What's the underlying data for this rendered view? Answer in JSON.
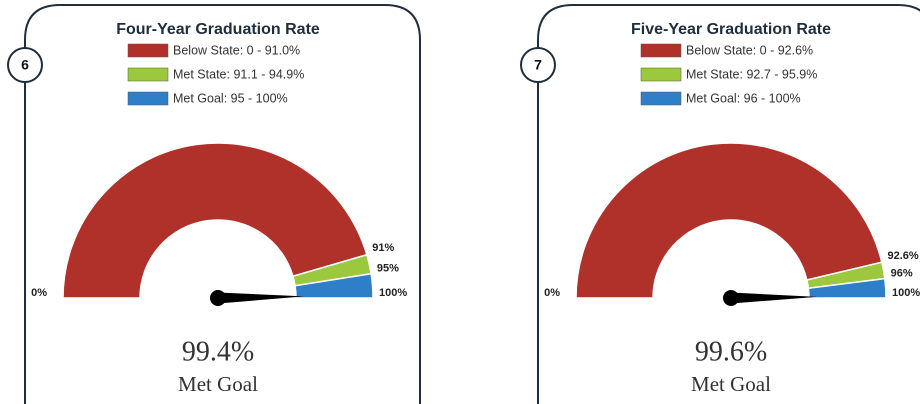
{
  "chart_data": [
    {
      "type": "gauge",
      "badge": "6",
      "title": "Four-Year Graduation Rate",
      "series": [
        {
          "name": "Below State: 0 - 91.0%",
          "color": "#b0302a",
          "values": [
            0,
            91
          ]
        },
        {
          "name": "Met State: 91.1 - 94.9%",
          "color": "#9bc83c",
          "values": [
            91,
            95
          ]
        },
        {
          "name": "Met Goal: 95 - 100%",
          "color": "#2f7fc8",
          "values": [
            95,
            100
          ]
        }
      ],
      "xlim": [
        0,
        100
      ],
      "xticks": [
        {
          "value": 0,
          "label": "0%"
        },
        {
          "value": 91,
          "label": "91%"
        },
        {
          "value": 95,
          "label": "95%"
        },
        {
          "value": 100,
          "label": "100%"
        }
      ],
      "value": 99.4,
      "value_label": "99.4%",
      "status": "Met Goal"
    },
    {
      "type": "gauge",
      "badge": "7",
      "title": "Five-Year Graduation Rate",
      "series": [
        {
          "name": "Below State: 0 - 92.6%",
          "color": "#b0302a",
          "values": [
            0,
            92.6
          ]
        },
        {
          "name": "Met State: 92.7 - 95.9%",
          "color": "#9bc83c",
          "values": [
            92.6,
            96
          ]
        },
        {
          "name": "Met Goal: 96 - 100%",
          "color": "#2f7fc8",
          "values": [
            96,
            100
          ]
        }
      ],
      "xlim": [
        0,
        100
      ],
      "xticks": [
        {
          "value": 0,
          "label": "0%"
        },
        {
          "value": 92.6,
          "label": "92.6%"
        },
        {
          "value": 96,
          "label": "96%"
        },
        {
          "value": 100,
          "label": "100%"
        }
      ],
      "value": 99.6,
      "value_label": "99.6%",
      "status": "Met Goal"
    }
  ]
}
